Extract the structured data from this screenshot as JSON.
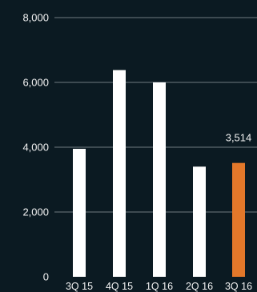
{
  "chart_data": {
    "type": "bar",
    "title": "",
    "xlabel": "",
    "ylabel": "",
    "categories": [
      "3Q 15",
      "4Q 15",
      "1Q 16",
      "2Q 16",
      "3Q 16"
    ],
    "values": [
      3950,
      6380,
      6000,
      3400,
      3514
    ],
    "ylim": [
      0,
      8000
    ],
    "yticks": [
      0,
      2000,
      4000,
      6000,
      8000
    ],
    "ytick_labels": [
      "0",
      "2,000",
      "4,000",
      "6,000",
      "8,000"
    ],
    "grid": true,
    "legend": "none",
    "annotations": [
      {
        "category": "3Q 16",
        "text": "3,514"
      }
    ],
    "colors": {
      "background": "#0b1a22",
      "bar": "#ffffff",
      "highlight_bar": "#e3782a",
      "gridline": "#6f7a80",
      "text": "#f2f2f2"
    },
    "highlight_category": "3Q 16"
  }
}
